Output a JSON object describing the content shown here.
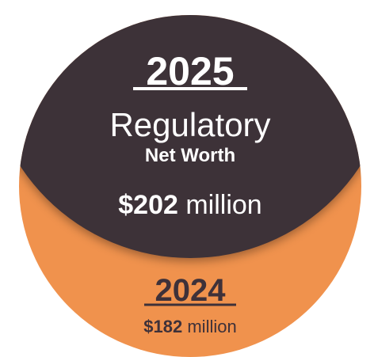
{
  "current": {
    "year": "2025",
    "title": "Regulatory",
    "subtitle": "Net Worth",
    "amount": "$202",
    "unit": "million"
  },
  "previous": {
    "year": "2024",
    "amount": "$182",
    "unit": "million"
  }
}
